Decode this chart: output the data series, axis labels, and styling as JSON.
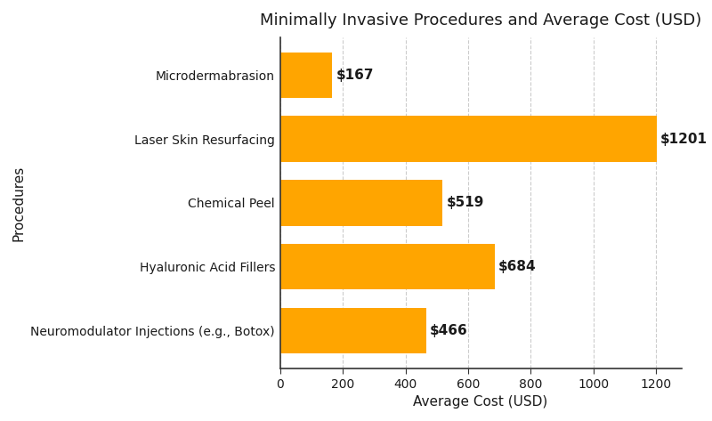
{
  "title": "Minimally Invasive Procedures and Average Cost (USD)",
  "xlabel": "Average Cost (USD)",
  "ylabel": "Procedures",
  "categories": [
    "Neuromodulator Injections (e.g., Botox)",
    "Hyaluronic Acid Fillers",
    "Chemical Peel",
    "Laser Skin Resurfacing",
    "Microdermabrasion"
  ],
  "values": [
    466,
    684,
    519,
    1201,
    167
  ],
  "bar_color": "#FFA500",
  "label_color": "#1a1a1a",
  "background_color": "#ffffff",
  "plot_bg_color": "#ffffff",
  "grid_color": "#cccccc",
  "spine_color": "#333333",
  "xlim": [
    0,
    1280
  ],
  "xticks": [
    0,
    200,
    400,
    600,
    800,
    1000,
    1200
  ],
  "title_fontsize": 13,
  "axis_label_fontsize": 11,
  "tick_fontsize": 10,
  "bar_label_fontsize": 11,
  "bar_height": 0.72,
  "figsize": [
    8.0,
    4.73
  ],
  "dpi": 100
}
